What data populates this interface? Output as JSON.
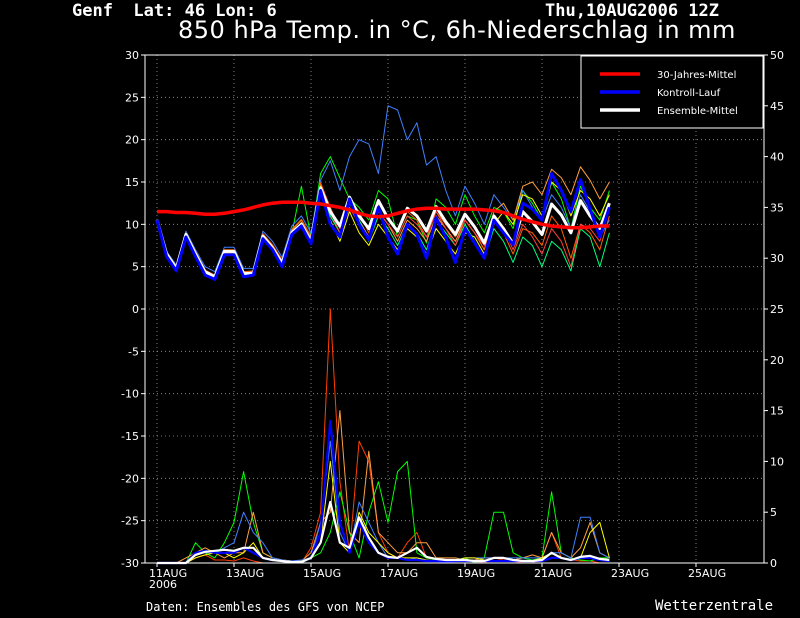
{
  "header": {
    "location": "Genf  Lat: 46 Lon: 6",
    "datetime": "Thu,10AUG2006 12Z"
  },
  "footer": {
    "source": "Daten: Ensembles des GFS von NCEP",
    "brand": "Wetterzentrale"
  },
  "chart_data": {
    "type": "line",
    "title": "850 hPa Temp. in °C, 6h-Niederschlag in mm",
    "x_axis": {
      "labels": [
        "11AUG\n2006",
        "13AUG",
        "15AUG",
        "17AUG",
        "19AUG",
        "21AUG",
        "23AUG",
        "25AUG"
      ],
      "start": "11AUG2006 00Z",
      "end": "26AUG2006 18Z",
      "step_hours": 6
    },
    "y_left": {
      "unit": "°C",
      "range": [
        -30,
        30
      ],
      "ticks": [
        30,
        25,
        20,
        15,
        10,
        5,
        0,
        -5,
        -10,
        -15,
        -20,
        -25,
        -30
      ]
    },
    "y_right": {
      "unit": "mm",
      "range": [
        0,
        50
      ],
      "ticks": [
        50,
        45,
        40,
        35,
        30,
        25,
        20,
        15,
        10,
        5,
        0
      ]
    },
    "grid": true,
    "legend_position": "top-right",
    "legend": [
      {
        "label": "30-Jahres-Mittel",
        "color": "#ff0000"
      },
      {
        "label": "Kontroll-Lauf",
        "color": "#0000ff"
      },
      {
        "label": "Ensemble-Mittel",
        "color": "#ffffff"
      }
    ],
    "temperature_series": [
      {
        "name": "30-Jahres-Mittel",
        "color": "#ff0000",
        "width": 3.5,
        "values": [
          11.5,
          11.5,
          11.4,
          11.4,
          11.3,
          11.2,
          11.2,
          11.3,
          11.5,
          11.7,
          12.0,
          12.3,
          12.5,
          12.6,
          12.6,
          12.6,
          12.5,
          12.4,
          12.2,
          12.0,
          11.7,
          11.3,
          11.0,
          10.9,
          11.0,
          11.3,
          11.6,
          11.8,
          11.9,
          11.9,
          11.8,
          11.8,
          11.8,
          11.8,
          11.7,
          11.6,
          11.4,
          11.0,
          10.6,
          10.3,
          10.0,
          9.8,
          9.7,
          9.6,
          9.6,
          9.7,
          9.8,
          9.8
        ]
      },
      {
        "name": "Ensemble-Mittel",
        "color": "#ffffff",
        "width": 3,
        "values": [
          10.5,
          6.5,
          4.8,
          8.8,
          6.5,
          4.4,
          3.8,
          6.8,
          6.8,
          4.2,
          4.2,
          8.6,
          7.2,
          5.4,
          9.0,
          10.0,
          8.0,
          14.3,
          11.5,
          9.8,
          13.2,
          11.0,
          9.5,
          12.8,
          10.7,
          9.2,
          11.9,
          11.0,
          9.2,
          12.1,
          10.3,
          8.8,
          11.2,
          9.7,
          7.8,
          11.0,
          9.5,
          7.7,
          11.5,
          10.3,
          8.8,
          12.4,
          11.1,
          9.0,
          12.8,
          11.0,
          9.5,
          12.5
        ]
      },
      {
        "name": "Kontroll-Lauf",
        "color": "#0000ff",
        "width": 3,
        "values": [
          10.5,
          6.2,
          4.5,
          8.5,
          6.2,
          4.0,
          3.5,
          6.4,
          6.4,
          3.8,
          4.0,
          8.3,
          7.0,
          5.0,
          8.8,
          9.8,
          7.7,
          14.0,
          10.0,
          8.5,
          13.0,
          10.0,
          8.2,
          12.0,
          8.5,
          6.5,
          10.0,
          8.8,
          6.0,
          10.8,
          8.4,
          5.5,
          9.5,
          7.8,
          6.0,
          10.5,
          9.0,
          7.6,
          12.5,
          11.8,
          10.5,
          16.0,
          14.0,
          11.5,
          15.3,
          11.8,
          8.5,
          12.0
        ]
      },
      {
        "name": "m1",
        "color": "#00ff00",
        "width": 1,
        "values": [
          10.5,
          6.3,
          4.6,
          8.6,
          6.3,
          4.1,
          3.6,
          6.5,
          6.6,
          4.0,
          4.1,
          8.4,
          7.1,
          5.2,
          8.9,
          14.5,
          8.5,
          16.0,
          18.0,
          15.5,
          13.0,
          12.0,
          10.5,
          14.0,
          13.0,
          8.5,
          11.0,
          10.5,
          7.8,
          13.0,
          12.0,
          10.0,
          13.5,
          11.0,
          9.0,
          12.0,
          11.5,
          9.5,
          14.0,
          12.5,
          10.5,
          15.0,
          13.0,
          9.5,
          14.5,
          12.0,
          10.5,
          14.0
        ]
      },
      {
        "name": "m2",
        "color": "#4080ff",
        "width": 1,
        "values": [
          10.5,
          6.8,
          5.2,
          9.2,
          7.0,
          5.0,
          4.4,
          7.3,
          7.3,
          4.8,
          4.8,
          9.2,
          8.0,
          6.1,
          9.8,
          11.0,
          9.0,
          15.2,
          17.5,
          14.0,
          18.0,
          20.0,
          19.5,
          16.0,
          24.0,
          23.5,
          20.0,
          22.0,
          17.0,
          18.0,
          14.0,
          11.0,
          14.5,
          12.5,
          10.0,
          13.5,
          12.0,
          10.5,
          14.0,
          12.0,
          10.5,
          13.5,
          12.0,
          9.5,
          13.5,
          11.5,
          8.5,
          10.5
        ]
      },
      {
        "name": "m3",
        "color": "#ffa040",
        "width": 1,
        "values": [
          10.5,
          6.6,
          4.9,
          8.9,
          6.7,
          4.5,
          3.9,
          6.9,
          6.9,
          4.3,
          4.4,
          8.8,
          7.5,
          5.7,
          9.3,
          10.5,
          8.5,
          14.8,
          11.0,
          9.0,
          12.0,
          10.5,
          8.5,
          11.5,
          10.0,
          8.0,
          10.5,
          9.5,
          8.0,
          11.0,
          9.5,
          8.0,
          10.5,
          9.0,
          7.0,
          11.5,
          12.5,
          10.5,
          14.5,
          15.0,
          13.5,
          16.5,
          15.5,
          13.5,
          16.8,
          15.2,
          13.0,
          15.0
        ]
      },
      {
        "name": "m4",
        "color": "#ffff00",
        "width": 1,
        "values": [
          10.5,
          6.4,
          4.7,
          8.7,
          6.4,
          4.2,
          3.7,
          6.6,
          6.6,
          4.1,
          4.1,
          8.5,
          7.1,
          5.3,
          9.0,
          10.2,
          8.2,
          14.5,
          10.5,
          8.0,
          11.5,
          9.0,
          7.5,
          10.0,
          8.5,
          7.0,
          9.5,
          8.5,
          6.5,
          9.5,
          8.0,
          6.5,
          9.0,
          8.5,
          6.5,
          10.0,
          11.5,
          10.0,
          13.5,
          13.0,
          11.0,
          15.0,
          14.0,
          11.0,
          14.0,
          13.0,
          11.0,
          13.5
        ]
      },
      {
        "name": "m5",
        "color": "#ff6000",
        "width": 1,
        "values": [
          10.5,
          6.7,
          5.0,
          9.0,
          6.8,
          4.6,
          4.0,
          7.0,
          7.0,
          4.4,
          4.5,
          8.9,
          7.6,
          5.8,
          9.4,
          10.6,
          8.6,
          14.9,
          12.0,
          9.5,
          13.0,
          11.5,
          9.0,
          12.5,
          11.0,
          9.0,
          11.5,
          10.5,
          8.5,
          11.5,
          10.0,
          8.5,
          10.5,
          9.0,
          7.0,
          11.0,
          9.0,
          6.5,
          9.5,
          9.0,
          7.5,
          11.0,
          9.5,
          6.0,
          10.0,
          9.0,
          7.0,
          11.0
        ]
      },
      {
        "name": "m6",
        "color": "#00ff80",
        "width": 1,
        "values": [
          10.5,
          6.2,
          4.6,
          8.6,
          6.3,
          4.1,
          3.6,
          6.5,
          6.5,
          4.0,
          4.1,
          8.4,
          7.0,
          5.2,
          8.9,
          10.0,
          8.0,
          14.2,
          11.0,
          9.0,
          12.5,
          10.5,
          8.0,
          11.0,
          9.5,
          7.5,
          10.0,
          9.0,
          7.0,
          10.5,
          9.0,
          7.5,
          10.0,
          8.0,
          6.0,
          9.5,
          8.0,
          5.5,
          8.5,
          7.5,
          5.0,
          8.0,
          7.0,
          4.5,
          9.5,
          8.5,
          5.0,
          9.0
        ]
      },
      {
        "name": "m7",
        "color": "#ff4040",
        "width": 1,
        "values": [
          10.5,
          6.5,
          4.8,
          8.8,
          6.5,
          4.3,
          3.8,
          6.7,
          6.7,
          4.2,
          4.3,
          8.6,
          7.2,
          5.4,
          9.0,
          10.0,
          8.0,
          14.0,
          11.5,
          9.0,
          12.0,
          10.0,
          8.5,
          11.5,
          10.0,
          8.5,
          11.0,
          10.0,
          8.5,
          11.5,
          9.5,
          7.5,
          10.5,
          9.0,
          7.5,
          11.0,
          9.5,
          7.0,
          10.0,
          8.5,
          6.5,
          9.5,
          8.0,
          5.0,
          10.0,
          9.5,
          8.0,
          12.0
        ]
      }
    ],
    "precip_series": [
      {
        "name": "p1",
        "color": "#ff4000",
        "values": [
          0,
          0,
          0,
          0,
          0.5,
          0.8,
          0.3,
          0.3,
          0.2,
          0.5,
          0.2,
          0,
          0,
          0,
          0,
          0,
          1.5,
          5,
          25,
          8,
          1,
          12,
          10,
          3,
          1,
          0.5,
          2,
          3,
          0.5,
          0.3,
          0.2,
          0.3,
          0.2,
          0.2,
          0,
          0.5,
          0.3,
          0.2,
          0,
          0,
          0.5,
          3,
          0.5,
          0.3,
          0.2,
          0.2,
          0,
          0
        ]
      },
      {
        "name": "p2",
        "color": "#00ff00",
        "values": [
          0,
          0,
          0,
          0,
          2,
          1,
          0.5,
          2,
          4,
          9,
          4,
          1,
          0.5,
          0.3,
          0.2,
          0,
          0.5,
          1,
          3,
          7,
          3,
          0.5,
          5,
          8,
          4,
          9,
          10,
          1,
          0.5,
          0.3,
          0.2,
          0.3,
          0.5,
          0,
          0.5,
          5,
          5,
          1,
          0.5,
          0.3,
          0.5,
          7,
          1,
          0.5,
          0.3,
          0.2,
          0.5,
          0.5
        ]
      },
      {
        "name": "p3",
        "color": "#ffa040",
        "values": [
          0,
          0,
          0,
          0.5,
          1,
          1.5,
          1,
          0.5,
          1,
          1,
          5,
          1,
          0.5,
          0.3,
          0.2,
          0.2,
          1,
          4,
          5,
          15,
          3,
          2,
          11,
          3,
          2,
          1,
          1,
          2,
          2,
          0.5,
          0.5,
          0.5,
          0.3,
          0.3,
          0.5,
          0.5,
          0.5,
          0.3,
          0.5,
          0.8,
          0.5,
          3,
          1,
          0.5,
          1.5,
          4,
          1,
          0.5
        ]
      },
      {
        "name": "p4",
        "color": "#4080ff",
        "values": [
          0,
          0,
          0,
          0,
          1,
          1,
          1,
          1.5,
          2,
          5,
          3,
          2,
          0.5,
          0.3,
          0.2,
          0.3,
          0.5,
          4,
          12,
          3,
          1,
          6,
          4,
          2,
          0.5,
          0.5,
          0.3,
          0.5,
          0.3,
          0.2,
          0.2,
          0.3,
          0.5,
          0.5,
          0.5,
          0.5,
          0.5,
          0.5,
          0.5,
          0.5,
          0.5,
          1,
          1,
          0.5,
          4.5,
          4.5,
          1,
          0.5
        ]
      },
      {
        "name": "p5",
        "color": "#ffff00",
        "values": [
          0,
          0,
          0,
          0,
          0.5,
          0.8,
          1,
          1,
          0.5,
          1,
          2,
          0.5,
          0.3,
          0.2,
          0.1,
          0.2,
          0.5,
          2,
          10,
          2,
          1,
          5,
          3,
          2,
          1,
          0.5,
          0.5,
          0.5,
          0.3,
          0.2,
          0.2,
          0.2,
          0.5,
          0.5,
          0.3,
          0.2,
          0.2,
          0.2,
          0.2,
          0.2,
          0.5,
          1,
          0.5,
          0.3,
          0.5,
          3,
          4,
          0.5
        ]
      },
      {
        "name": "Kontroll-Lauf",
        "color": "#0000ff",
        "values": [
          0,
          0,
          0,
          0,
          1,
          1.2,
          1,
          1,
          1,
          1.5,
          1,
          0.5,
          0.3,
          0.2,
          0.1,
          0.1,
          0.5,
          3,
          14,
          4,
          1,
          4,
          2,
          1,
          0.5,
          0.5,
          0.3,
          0.3,
          0.2,
          0.2,
          0.1,
          0.2,
          0.2,
          0.2,
          0.2,
          0.2,
          0.2,
          0.2,
          0.2,
          0.2,
          0.2,
          0.5,
          0.5,
          0.3,
          0.5,
          0.5,
          0.3,
          0.2
        ]
      },
      {
        "name": "Ensemble-Mittel",
        "color": "#ffffff",
        "values": [
          0,
          0,
          0,
          0,
          0.8,
          1.1,
          1.2,
          1.3,
          1.2,
          1.5,
          1.5,
          0.5,
          0.3,
          0.2,
          0.1,
          0.1,
          0.5,
          2,
          6,
          2,
          1.5,
          4.5,
          2.5,
          1,
          0.6,
          0.5,
          1,
          1.5,
          0.6,
          0.4,
          0.3,
          0.3,
          0.3,
          0.2,
          0.2,
          0.5,
          0.5,
          0.3,
          0.2,
          0.2,
          0.3,
          1,
          0.5,
          0.3,
          0.6,
          0.7,
          0.4,
          0.3
        ]
      }
    ]
  }
}
